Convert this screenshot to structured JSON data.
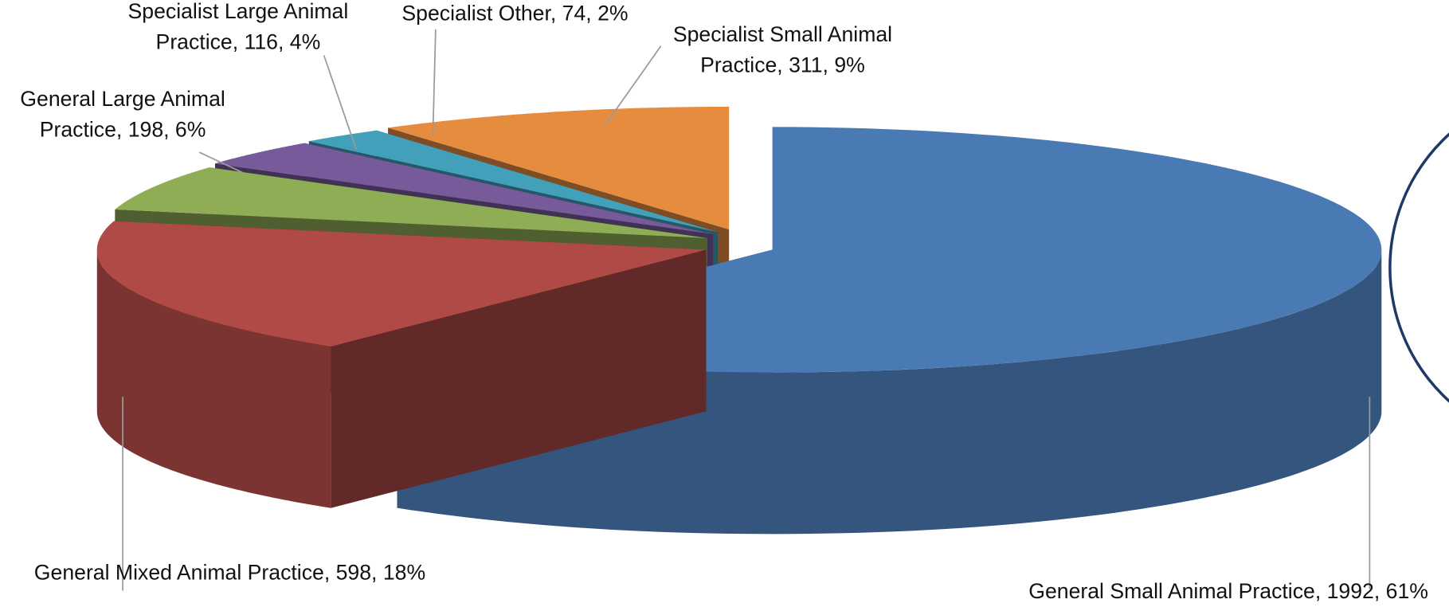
{
  "chart_data": {
    "type": "pie",
    "values": [
      1992,
      598,
      198,
      116,
      74,
      311
    ],
    "value_labels": [
      "General Small Animal Practice, 1992, 61%",
      "General Mixed Animal Practice, 598, 18%",
      "General Large Animal Practice, 198, 6%",
      "Specialist Large Animal Practice, 116, 4%",
      "Specialist Other, 74, 2%",
      "Specialist Small Animal Practice, 311, 9%"
    ],
    "colors": [
      "#4a7ab4",
      "#b04a46",
      "#8fad55",
      "#765a9a",
      "#43a0ba",
      "#e58c3f"
    ],
    "exploded": true,
    "three_d": true
  }
}
